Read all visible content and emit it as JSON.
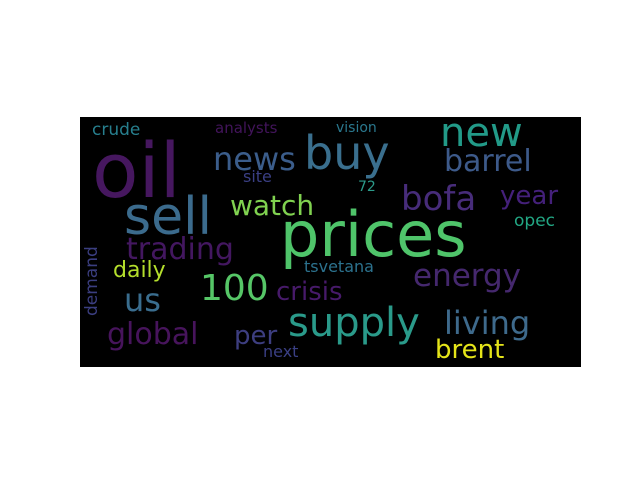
{
  "figure": {
    "background_color": "#000000",
    "page_color": "#ffffff"
  },
  "words": [
    {
      "id": "oil",
      "text": "oil",
      "color": "#46175f"
    },
    {
      "id": "prices",
      "text": "prices",
      "color": "#4fc46a"
    },
    {
      "id": "buy",
      "text": "buy",
      "color": "#3a6f8e"
    },
    {
      "id": "sell",
      "text": "sell",
      "color": "#3b6b8d"
    },
    {
      "id": "new",
      "text": "new",
      "color": "#229a88"
    },
    {
      "id": "barrel",
      "text": "barrel",
      "color": "#3d5a8a"
    },
    {
      "id": "news",
      "text": "news",
      "color": "#3b5d8b"
    },
    {
      "id": "watch",
      "text": "watch",
      "color": "#80d250"
    },
    {
      "id": "bofa",
      "text": "bofa",
      "color": "#472c7a"
    },
    {
      "id": "year",
      "text": "year",
      "color": "#44207a"
    },
    {
      "id": "trading",
      "text": "trading",
      "color": "#431760"
    },
    {
      "id": "energy",
      "text": "energy",
      "color": "#45286e"
    },
    {
      "id": "100",
      "text": "100",
      "color": "#56c667"
    },
    {
      "id": "us",
      "text": "us",
      "color": "#3a6d8e"
    },
    {
      "id": "daily",
      "text": "daily",
      "color": "#b4de2c"
    },
    {
      "id": "crisis",
      "text": "crisis",
      "color": "#471a6a"
    },
    {
      "id": "supply",
      "text": "supply",
      "color": "#2a9a8a"
    },
    {
      "id": "living",
      "text": "living",
      "color": "#3e6a8c"
    },
    {
      "id": "global",
      "text": "global",
      "color": "#47145c"
    },
    {
      "id": "per",
      "text": "per",
      "color": "#3d3e80"
    },
    {
      "id": "brent",
      "text": "brent",
      "color": "#e5e419"
    },
    {
      "id": "crude",
      "text": "crude",
      "color": "#277f8e"
    },
    {
      "id": "analysts",
      "text": "analysts",
      "color": "#42145b"
    },
    {
      "id": "vision",
      "text": "vision",
      "color": "#2a788e"
    },
    {
      "id": "site",
      "text": "site",
      "color": "#3a3f84"
    },
    {
      "id": "72",
      "text": "72",
      "color": "#2c9b8a"
    },
    {
      "id": "opec",
      "text": "opec",
      "color": "#22a784"
    },
    {
      "id": "tsvetana",
      "text": "tsvetana",
      "color": "#2c728e"
    },
    {
      "id": "demand",
      "text": "demand",
      "color": "#3b3e80"
    },
    {
      "id": "next",
      "text": "next",
      "color": "#3a3f84"
    }
  ]
}
